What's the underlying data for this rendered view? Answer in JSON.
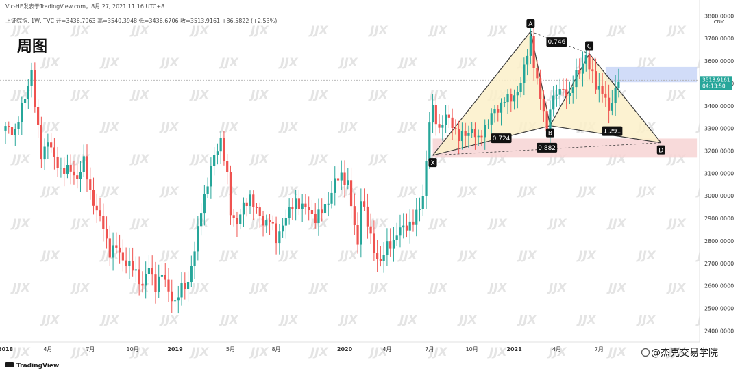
{
  "header": {
    "publisher": "Vic-HE发表于TradingView.com，8月 27, 2021 11:16 UTC+8",
    "symbol_line": "上证综指, 1W, TVC  开=3436.7963  高=3540.3948  低=3436.6706  收=3513.9161  +86.5822 (+2.53%)",
    "badge": "周图"
  },
  "currency": "CNY",
  "price_label": {
    "value": "3513.9161",
    "time": "04:13:50"
  },
  "footer": {
    "logo": "TradingView",
    "credit": "@杰克交易学院"
  },
  "watermark": "JJX",
  "colors": {
    "up": "#26a69a",
    "down": "#ef5350",
    "ink": "#111111",
    "pattern_fill": "#fbf0c9",
    "pattern_stroke": "#3a3a3a",
    "target_zone": "#f7d3d3",
    "current_zone": "#c9d6f7"
  },
  "chart_data": {
    "type": "candlestick",
    "title": "上证综指, 1W, TVC",
    "ylim": [
      2380,
      3810
    ],
    "y_ticks": [
      "3800.0000",
      "3700.0000",
      "3600.0000",
      "3500.0000",
      "3400.0000",
      "3300.0000",
      "3200.0000",
      "3100.0000",
      "3000.0000",
      "2900.0000",
      "2800.0000",
      "2700.0000",
      "2600.0000",
      "2500.0000",
      "2400.0000"
    ],
    "y_tick_values": [
      3800,
      3700,
      3600,
      3500,
      3400,
      3300,
      3200,
      3100,
      3000,
      2900,
      2800,
      2700,
      2600,
      2500,
      2400
    ],
    "x_ticks": [
      {
        "label": "2018",
        "week": 0,
        "bold": true
      },
      {
        "label": "4月",
        "week": 13,
        "bold": false
      },
      {
        "label": "7月",
        "week": 26,
        "bold": false
      },
      {
        "label": "10月",
        "week": 39,
        "bold": false
      },
      {
        "label": "2019",
        "week": 52,
        "bold": true
      },
      {
        "label": "5月",
        "week": 69,
        "bold": false
      },
      {
        "label": "8月",
        "week": 83,
        "bold": false
      },
      {
        "label": "2020",
        "week": 104,
        "bold": true
      },
      {
        "label": "4月",
        "week": 117,
        "bold": false
      },
      {
        "label": "7月",
        "week": 130,
        "bold": false
      },
      {
        "label": "10月",
        "week": 143,
        "bold": false
      },
      {
        "label": "2021",
        "week": 156,
        "bold": true
      },
      {
        "label": "4月",
        "week": 169,
        "bold": false
      },
      {
        "label": "7月",
        "week": 182,
        "bold": false
      }
    ],
    "close_path": [
      [
        0,
        3300
      ],
      [
        3,
        3290
      ],
      [
        6,
        3440
      ],
      [
        8,
        3560
      ],
      [
        9,
        3400
      ],
      [
        11,
        3180
      ],
      [
        13,
        3250
      ],
      [
        15,
        3160
      ],
      [
        17,
        3120
      ],
      [
        20,
        3110
      ],
      [
        22,
        3080
      ],
      [
        24,
        3150
      ],
      [
        26,
        3020
      ],
      [
        28,
        2930
      ],
      [
        30,
        2860
      ],
      [
        32,
        2750
      ],
      [
        34,
        2770
      ],
      [
        36,
        2720
      ],
      [
        38,
        2690
      ],
      [
        40,
        2660
      ],
      [
        42,
        2600
      ],
      [
        44,
        2680
      ],
      [
        46,
        2600
      ],
      [
        48,
        2650
      ],
      [
        50,
        2580
      ],
      [
        52,
        2520
      ],
      [
        54,
        2590
      ],
      [
        56,
        2620
      ],
      [
        58,
        2750
      ],
      [
        60,
        2950
      ],
      [
        62,
        3050
      ],
      [
        64,
        3180
      ],
      [
        66,
        3250
      ],
      [
        68,
        3080
      ],
      [
        69,
        2930
      ],
      [
        71,
        2880
      ],
      [
        73,
        2950
      ],
      [
        75,
        3000
      ],
      [
        77,
        2930
      ],
      [
        79,
        2880
      ],
      [
        81,
        2900
      ],
      [
        83,
        2800
      ],
      [
        85,
        2880
      ],
      [
        87,
        2930
      ],
      [
        89,
        2980
      ],
      [
        91,
        2950
      ],
      [
        93,
        2940
      ],
      [
        95,
        2900
      ],
      [
        97,
        2930
      ],
      [
        99,
        2980
      ],
      [
        101,
        3060
      ],
      [
        103,
        3090
      ],
      [
        105,
        3060
      ],
      [
        106,
        2950
      ],
      [
        108,
        2780
      ],
      [
        109,
        3000
      ],
      [
        111,
        2870
      ],
      [
        113,
        2760
      ],
      [
        115,
        2700
      ],
      [
        117,
        2780
      ],
      [
        119,
        2800
      ],
      [
        121,
        2850
      ],
      [
        123,
        2870
      ],
      [
        125,
        2880
      ],
      [
        127,
        2950
      ],
      [
        128,
        3010
      ],
      [
        129,
        3150
      ],
      [
        130,
        3330
      ],
      [
        131,
        3380
      ],
      [
        133,
        3300
      ],
      [
        135,
        3350
      ],
      [
        137,
        3320
      ],
      [
        139,
        3260
      ],
      [
        141,
        3270
      ],
      [
        143,
        3300
      ],
      [
        145,
        3240
      ],
      [
        147,
        3310
      ],
      [
        149,
        3360
      ],
      [
        151,
        3380
      ],
      [
        153,
        3440
      ],
      [
        155,
        3420
      ],
      [
        157,
        3470
      ],
      [
        159,
        3560
      ],
      [
        161,
        3700
      ],
      [
        162,
        3590
      ],
      [
        163,
        3520
      ],
      [
        164,
        3420
      ],
      [
        165,
        3380
      ],
      [
        166,
        3280
      ],
      [
        167,
        3410
      ],
      [
        169,
        3450
      ],
      [
        171,
        3480
      ],
      [
        173,
        3440
      ],
      [
        175,
        3540
      ],
      [
        177,
        3590
      ],
      [
        178,
        3620
      ],
      [
        179,
        3560
      ],
      [
        180,
        3540
      ],
      [
        181,
        3500
      ],
      [
        183,
        3460
      ],
      [
        184,
        3420
      ],
      [
        185,
        3380
      ],
      [
        186,
        3430
      ],
      [
        187,
        3470
      ],
      [
        188,
        3514
      ]
    ],
    "harmonic_pattern": {
      "name": "Shark/Crab style",
      "points": {
        "X": {
          "week": 131,
          "price": 3180
        },
        "A": {
          "week": 161,
          "price": 3731
        },
        "B": {
          "week": 167,
          "price": 3312
        },
        "C": {
          "week": 179,
          "price": 3632
        },
        "D": {
          "week": 201,
          "price": 3236
        }
      },
      "ratios": [
        {
          "label": "0.724",
          "week": 152,
          "price": 3256
        },
        {
          "label": "0.746",
          "week": 169,
          "price": 3685
        },
        {
          "label": "0.882",
          "week": 166,
          "price": 3214
        },
        {
          "label": "1.291",
          "week": 186,
          "price": 3288
        }
      ]
    },
    "zones": [
      {
        "name": "target",
        "price_low": 3170,
        "price_high": 3255,
        "week_start": 131,
        "week_end": 212
      },
      {
        "name": "current",
        "price_low": 3505,
        "price_high": 3573,
        "week_start": 184,
        "week_end": 212
      }
    ],
    "dotted_line": 3513.9161
  }
}
